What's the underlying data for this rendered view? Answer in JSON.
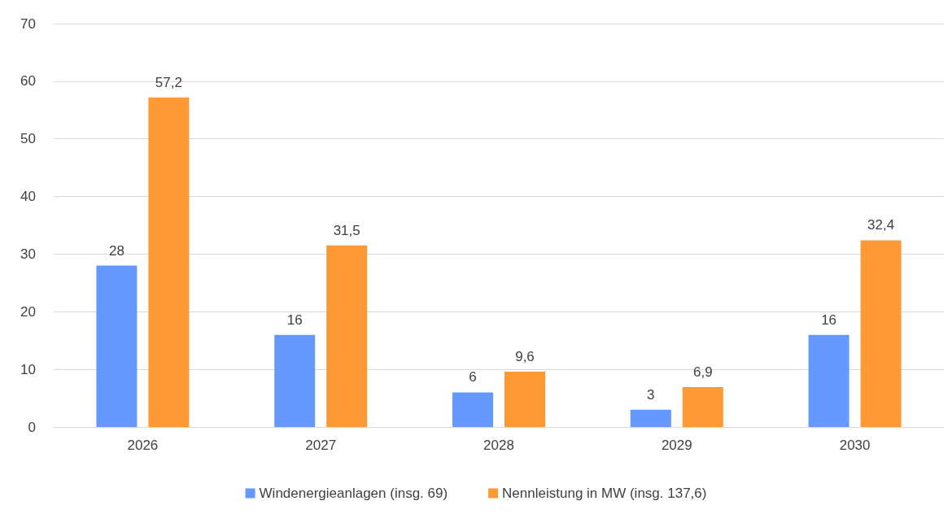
{
  "chart_data": {
    "type": "bar",
    "categories": [
      "2026",
      "2027",
      "2028",
      "2029",
      "2030"
    ],
    "series": [
      {
        "name": "Windenergieanlagen (insg. 69)",
        "color": "#6699ff",
        "values": [
          28,
          16,
          6,
          3,
          16
        ],
        "value_labels": [
          "28",
          "16",
          "6",
          "3",
          "16"
        ]
      },
      {
        "name": "Nennleistung in MW (insg. 137,6)",
        "color": "#ff9933",
        "values": [
          57.2,
          31.5,
          9.6,
          6.9,
          32.4
        ],
        "value_labels": [
          "57,2",
          "31,5",
          "9,6",
          "6,9",
          "32,4"
        ]
      }
    ],
    "ylim": [
      0,
      70
    ],
    "yticks": [
      0,
      10,
      20,
      30,
      40,
      50,
      60,
      70
    ],
    "grid": "y",
    "legend": "bottom"
  }
}
